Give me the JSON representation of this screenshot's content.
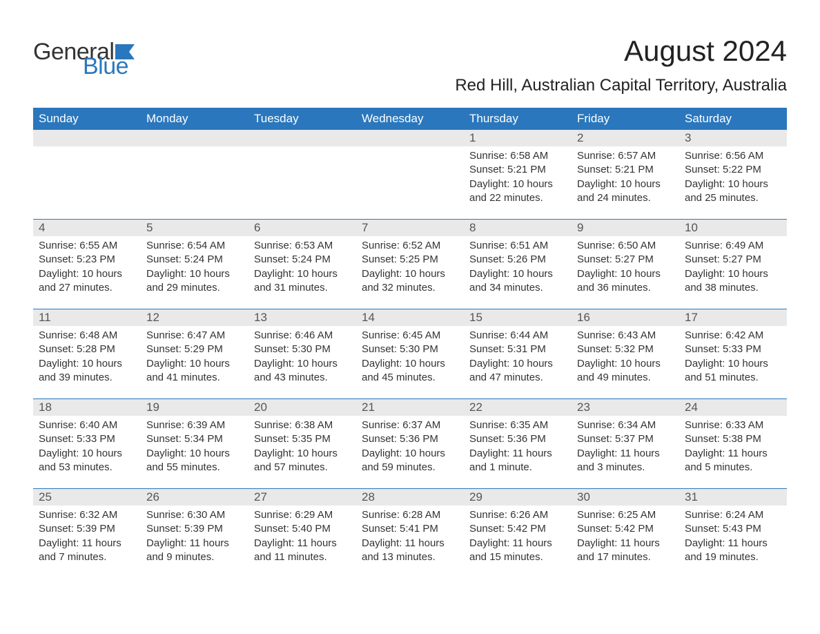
{
  "logo": {
    "text_general": "General",
    "text_blue": "Blue",
    "flag_color": "#2a77bd"
  },
  "header": {
    "month_title": "August 2024",
    "location": "Red Hill, Australian Capital Territory, Australia"
  },
  "calendar": {
    "header_bg_color": "#2a77bd",
    "header_text_color": "#ffffff",
    "day_number_bg": "#e9e9e9",
    "row_border_color": "#2a77bd",
    "columns": [
      "Sunday",
      "Monday",
      "Tuesday",
      "Wednesday",
      "Thursday",
      "Friday",
      "Saturday"
    ],
    "weeks": [
      [
        {
          "day": "",
          "sunrise": "",
          "sunset": "",
          "daylight": ""
        },
        {
          "day": "",
          "sunrise": "",
          "sunset": "",
          "daylight": ""
        },
        {
          "day": "",
          "sunrise": "",
          "sunset": "",
          "daylight": ""
        },
        {
          "day": "",
          "sunrise": "",
          "sunset": "",
          "daylight": ""
        },
        {
          "day": "1",
          "sunrise": "Sunrise: 6:58 AM",
          "sunset": "Sunset: 5:21 PM",
          "daylight": "Daylight: 10 hours and 22 minutes."
        },
        {
          "day": "2",
          "sunrise": "Sunrise: 6:57 AM",
          "sunset": "Sunset: 5:21 PM",
          "daylight": "Daylight: 10 hours and 24 minutes."
        },
        {
          "day": "3",
          "sunrise": "Sunrise: 6:56 AM",
          "sunset": "Sunset: 5:22 PM",
          "daylight": "Daylight: 10 hours and 25 minutes."
        }
      ],
      [
        {
          "day": "4",
          "sunrise": "Sunrise: 6:55 AM",
          "sunset": "Sunset: 5:23 PM",
          "daylight": "Daylight: 10 hours and 27 minutes."
        },
        {
          "day": "5",
          "sunrise": "Sunrise: 6:54 AM",
          "sunset": "Sunset: 5:24 PM",
          "daylight": "Daylight: 10 hours and 29 minutes."
        },
        {
          "day": "6",
          "sunrise": "Sunrise: 6:53 AM",
          "sunset": "Sunset: 5:24 PM",
          "daylight": "Daylight: 10 hours and 31 minutes."
        },
        {
          "day": "7",
          "sunrise": "Sunrise: 6:52 AM",
          "sunset": "Sunset: 5:25 PM",
          "daylight": "Daylight: 10 hours and 32 minutes."
        },
        {
          "day": "8",
          "sunrise": "Sunrise: 6:51 AM",
          "sunset": "Sunset: 5:26 PM",
          "daylight": "Daylight: 10 hours and 34 minutes."
        },
        {
          "day": "9",
          "sunrise": "Sunrise: 6:50 AM",
          "sunset": "Sunset: 5:27 PM",
          "daylight": "Daylight: 10 hours and 36 minutes."
        },
        {
          "day": "10",
          "sunrise": "Sunrise: 6:49 AM",
          "sunset": "Sunset: 5:27 PM",
          "daylight": "Daylight: 10 hours and 38 minutes."
        }
      ],
      [
        {
          "day": "11",
          "sunrise": "Sunrise: 6:48 AM",
          "sunset": "Sunset: 5:28 PM",
          "daylight": "Daylight: 10 hours and 39 minutes."
        },
        {
          "day": "12",
          "sunrise": "Sunrise: 6:47 AM",
          "sunset": "Sunset: 5:29 PM",
          "daylight": "Daylight: 10 hours and 41 minutes."
        },
        {
          "day": "13",
          "sunrise": "Sunrise: 6:46 AM",
          "sunset": "Sunset: 5:30 PM",
          "daylight": "Daylight: 10 hours and 43 minutes."
        },
        {
          "day": "14",
          "sunrise": "Sunrise: 6:45 AM",
          "sunset": "Sunset: 5:30 PM",
          "daylight": "Daylight: 10 hours and 45 minutes."
        },
        {
          "day": "15",
          "sunrise": "Sunrise: 6:44 AM",
          "sunset": "Sunset: 5:31 PM",
          "daylight": "Daylight: 10 hours and 47 minutes."
        },
        {
          "day": "16",
          "sunrise": "Sunrise: 6:43 AM",
          "sunset": "Sunset: 5:32 PM",
          "daylight": "Daylight: 10 hours and 49 minutes."
        },
        {
          "day": "17",
          "sunrise": "Sunrise: 6:42 AM",
          "sunset": "Sunset: 5:33 PM",
          "daylight": "Daylight: 10 hours and 51 minutes."
        }
      ],
      [
        {
          "day": "18",
          "sunrise": "Sunrise: 6:40 AM",
          "sunset": "Sunset: 5:33 PM",
          "daylight": "Daylight: 10 hours and 53 minutes."
        },
        {
          "day": "19",
          "sunrise": "Sunrise: 6:39 AM",
          "sunset": "Sunset: 5:34 PM",
          "daylight": "Daylight: 10 hours and 55 minutes."
        },
        {
          "day": "20",
          "sunrise": "Sunrise: 6:38 AM",
          "sunset": "Sunset: 5:35 PM",
          "daylight": "Daylight: 10 hours and 57 minutes."
        },
        {
          "day": "21",
          "sunrise": "Sunrise: 6:37 AM",
          "sunset": "Sunset: 5:36 PM",
          "daylight": "Daylight: 10 hours and 59 minutes."
        },
        {
          "day": "22",
          "sunrise": "Sunrise: 6:35 AM",
          "sunset": "Sunset: 5:36 PM",
          "daylight": "Daylight: 11 hours and 1 minute."
        },
        {
          "day": "23",
          "sunrise": "Sunrise: 6:34 AM",
          "sunset": "Sunset: 5:37 PM",
          "daylight": "Daylight: 11 hours and 3 minutes."
        },
        {
          "day": "24",
          "sunrise": "Sunrise: 6:33 AM",
          "sunset": "Sunset: 5:38 PM",
          "daylight": "Daylight: 11 hours and 5 minutes."
        }
      ],
      [
        {
          "day": "25",
          "sunrise": "Sunrise: 6:32 AM",
          "sunset": "Sunset: 5:39 PM",
          "daylight": "Daylight: 11 hours and 7 minutes."
        },
        {
          "day": "26",
          "sunrise": "Sunrise: 6:30 AM",
          "sunset": "Sunset: 5:39 PM",
          "daylight": "Daylight: 11 hours and 9 minutes."
        },
        {
          "day": "27",
          "sunrise": "Sunrise: 6:29 AM",
          "sunset": "Sunset: 5:40 PM",
          "daylight": "Daylight: 11 hours and 11 minutes."
        },
        {
          "day": "28",
          "sunrise": "Sunrise: 6:28 AM",
          "sunset": "Sunset: 5:41 PM",
          "daylight": "Daylight: 11 hours and 13 minutes."
        },
        {
          "day": "29",
          "sunrise": "Sunrise: 6:26 AM",
          "sunset": "Sunset: 5:42 PM",
          "daylight": "Daylight: 11 hours and 15 minutes."
        },
        {
          "day": "30",
          "sunrise": "Sunrise: 6:25 AM",
          "sunset": "Sunset: 5:42 PM",
          "daylight": "Daylight: 11 hours and 17 minutes."
        },
        {
          "day": "31",
          "sunrise": "Sunrise: 6:24 AM",
          "sunset": "Sunset: 5:43 PM",
          "daylight": "Daylight: 11 hours and 19 minutes."
        }
      ]
    ]
  }
}
